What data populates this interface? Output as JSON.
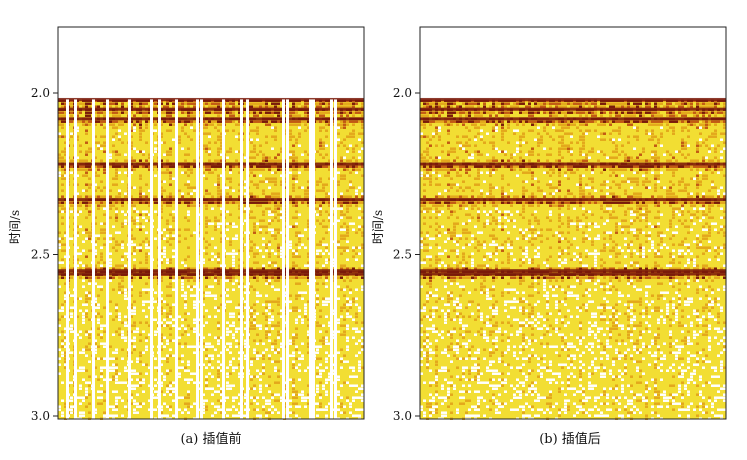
{
  "figure": {
    "panels": [
      {
        "caption": "(a) 插值前",
        "ylabel": "时间/s"
      },
      {
        "caption": "(b) 插值后",
        "ylabel": "时间/s"
      }
    ]
  },
  "chart_data": [
    {
      "type": "heatmap",
      "title": "",
      "caption": "(a) 插值前",
      "xlabel": "",
      "ylabel": "时间/s",
      "ylim": [
        1.8,
        3.0
      ],
      "y_axis_direction": "downward",
      "y_ticks": [
        "2.0",
        "2.5",
        "3.0"
      ],
      "data_start_time": 2.02,
      "strong_reflection_times": [
        2.02,
        2.05,
        2.08,
        2.22,
        2.33,
        2.55,
        2.56
      ],
      "missing_traces": true,
      "colormap": [
        "#ffffff",
        "#f2de33",
        "#e3a81c",
        "#c25a14",
        "#7a1a0a"
      ]
    },
    {
      "type": "heatmap",
      "title": "",
      "caption": "(b) 插值后",
      "xlabel": "",
      "ylabel": "时间/s",
      "ylim": [
        1.8,
        3.0
      ],
      "y_axis_direction": "downward",
      "y_ticks": [
        "2.0",
        "2.5",
        "3.0"
      ],
      "data_start_time": 2.02,
      "strong_reflection_times": [
        2.02,
        2.05,
        2.08,
        2.22,
        2.33,
        2.55,
        2.56
      ],
      "missing_traces": false,
      "colormap": [
        "#ffffff",
        "#f2de33",
        "#e3a81c",
        "#c25a14",
        "#7a1a0a"
      ]
    }
  ]
}
